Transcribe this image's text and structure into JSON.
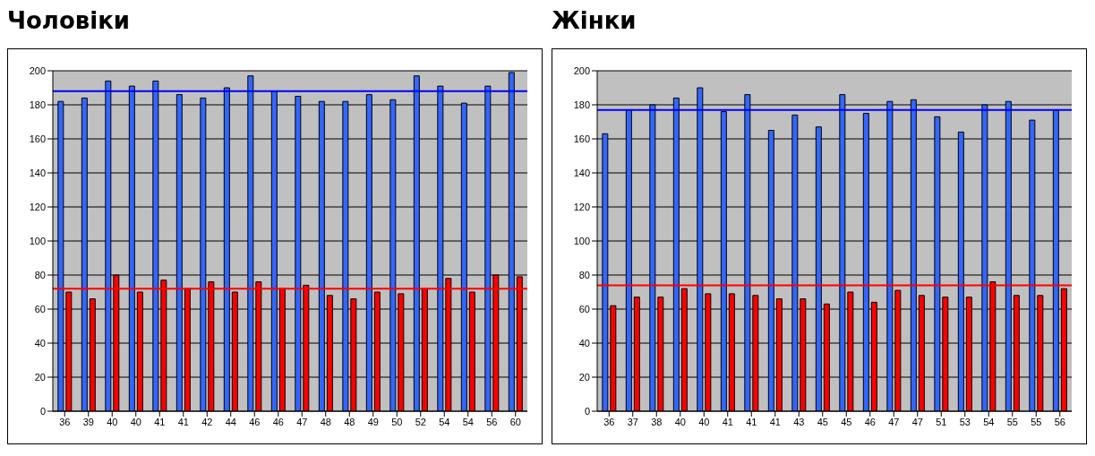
{
  "chart_data": [
    {
      "type": "bar",
      "title": "Чоловіки",
      "categories": [
        "36",
        "39",
        "40",
        "40",
        "41",
        "41",
        "42",
        "44",
        "46",
        "46",
        "47",
        "48",
        "48",
        "49",
        "50",
        "52",
        "54",
        "54",
        "56",
        "60"
      ],
      "series": [
        {
          "color": "#3366ff",
          "values": [
            182,
            184,
            194,
            191,
            194,
            186,
            184,
            190,
            197,
            188,
            185,
            182,
            182,
            186,
            183,
            197,
            191,
            181,
            191,
            199
          ]
        },
        {
          "color": "#ff0000",
          "values": [
            70,
            66,
            80,
            70,
            77,
            72,
            76,
            70,
            76,
            72,
            74,
            68,
            66,
            70,
            69,
            72,
            78,
            70,
            80,
            79
          ]
        }
      ],
      "ylim": [
        0,
        200
      ],
      "yticks": [
        0,
        20,
        40,
        60,
        80,
        100,
        120,
        140,
        160,
        180,
        200
      ],
      "grid": "y",
      "legend": false,
      "ref_lines": [
        {
          "axis": "y",
          "value": 188,
          "color": "#0000ff"
        },
        {
          "axis": "y",
          "value": 72,
          "color": "#ff0000"
        }
      ]
    },
    {
      "type": "bar",
      "title": "Жінки",
      "categories": [
        "36",
        "37",
        "38",
        "40",
        "40",
        "41",
        "41",
        "41",
        "43",
        "45",
        "45",
        "46",
        "47",
        "47",
        "51",
        "53",
        "54",
        "55",
        "55",
        "56"
      ],
      "series": [
        {
          "color": "#3366ff",
          "values": [
            163,
            177,
            180,
            184,
            190,
            176,
            186,
            165,
            174,
            167,
            186,
            175,
            182,
            183,
            173,
            164,
            180,
            182,
            171,
            177
          ]
        },
        {
          "color": "#ff0000",
          "values": [
            62,
            67,
            67,
            72,
            69,
            69,
            68,
            66,
            66,
            63,
            70,
            64,
            71,
            68,
            67,
            67,
            76,
            68,
            68,
            72
          ]
        }
      ],
      "ylim": [
        0,
        200
      ],
      "yticks": [
        0,
        20,
        40,
        60,
        80,
        100,
        120,
        140,
        160,
        180,
        200
      ],
      "grid": "y",
      "legend": false,
      "ref_lines": [
        {
          "axis": "y",
          "value": 177,
          "color": "#0000ff"
        },
        {
          "axis": "y",
          "value": 74,
          "color": "#ff0000"
        }
      ]
    }
  ]
}
